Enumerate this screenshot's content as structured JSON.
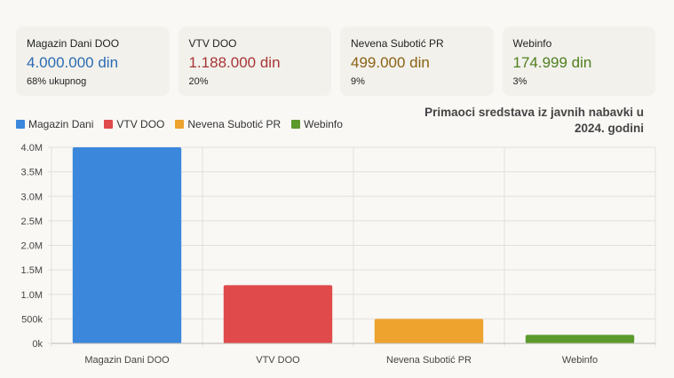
{
  "cards": [
    {
      "name": "Magazin Dani DOO",
      "amount": "4.000.000 din",
      "share": "68% ukupnog",
      "color": "#2c6cb3"
    },
    {
      "name": "VTV DOO",
      "amount": "1.188.000 din",
      "share": "20%",
      "color": "#a83535"
    },
    {
      "name": "Nevena Subotić PR",
      "amount": "499.000 din",
      "share": "9%",
      "color": "#8a6214"
    },
    {
      "name": "Webinfo",
      "amount": "174.999 din",
      "share": "3%",
      "color": "#4f7f1e"
    }
  ],
  "chart_data": {
    "type": "bar",
    "title": "Primaoci sredstava iz javnih nabavki u 2024. godini",
    "categories": [
      "Magazin Dani DOO",
      "VTV DOO",
      "Nevena Subotić PR",
      "Webinfo"
    ],
    "values": [
      4000000,
      1188000,
      499000,
      174999
    ],
    "colors": [
      "#3a87dc",
      "#e04a4a",
      "#eda32e",
      "#5c9a2c"
    ],
    "legend": [
      "Magazin Dani",
      "VTV DOO",
      "Nevena Subotić PR",
      "Webinfo"
    ],
    "legend_position": "top-left",
    "ylim": [
      0,
      4000000
    ],
    "yticks": [
      0,
      500000,
      1000000,
      1500000,
      2000000,
      2500000,
      3000000,
      3500000,
      4000000
    ],
    "ytick_labels": [
      "0k",
      "500k",
      "1.0M",
      "1.5M",
      "2.0M",
      "2.5M",
      "3.0M",
      "3.5M",
      "4.0M"
    ],
    "grid": true
  }
}
